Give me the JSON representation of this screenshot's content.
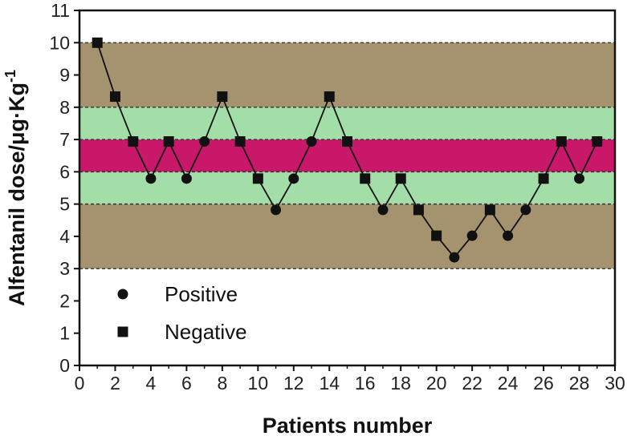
{
  "chart_data": {
    "type": "scatter",
    "xlabel": "Patients number",
    "ylabel_main": "Alfentanil dose/μg·Kg",
    "ylabel_sup": "-1",
    "xlim": [
      0,
      30
    ],
    "ylim": [
      0,
      11
    ],
    "x_ticks": [
      0,
      2,
      4,
      6,
      8,
      10,
      12,
      14,
      16,
      18,
      20,
      22,
      24,
      26,
      28,
      30
    ],
    "y_ticks": [
      0,
      1,
      2,
      3,
      4,
      5,
      6,
      7,
      8,
      9,
      10,
      11
    ],
    "bands": [
      {
        "y0": 3,
        "y1": 5,
        "color": "#a4936e"
      },
      {
        "y0": 5,
        "y1": 6,
        "color": "#a3dea9"
      },
      {
        "y0": 6,
        "y1": 7,
        "color": "#c9176a"
      },
      {
        "y0": 7,
        "y1": 8,
        "color": "#a3dea9"
      },
      {
        "y0": 8,
        "y1": 10,
        "color": "#a4936e"
      }
    ],
    "dashed_lines": [
      3,
      5,
      6,
      7,
      8,
      10
    ],
    "points": [
      {
        "x": 1,
        "y": 10.0,
        "outcome": "Negative"
      },
      {
        "x": 2,
        "y": 8.33,
        "outcome": "Negative"
      },
      {
        "x": 3,
        "y": 6.94,
        "outcome": "Negative"
      },
      {
        "x": 4,
        "y": 5.79,
        "outcome": "Positive"
      },
      {
        "x": 5,
        "y": 6.94,
        "outcome": "Negative"
      },
      {
        "x": 6,
        "y": 5.79,
        "outcome": "Positive"
      },
      {
        "x": 7,
        "y": 6.94,
        "outcome": "Positive"
      },
      {
        "x": 8,
        "y": 8.33,
        "outcome": "Negative"
      },
      {
        "x": 9,
        "y": 6.94,
        "outcome": "Negative"
      },
      {
        "x": 10,
        "y": 5.79,
        "outcome": "Negative"
      },
      {
        "x": 11,
        "y": 4.82,
        "outcome": "Positive"
      },
      {
        "x": 12,
        "y": 5.79,
        "outcome": "Positive"
      },
      {
        "x": 13,
        "y": 6.94,
        "outcome": "Positive"
      },
      {
        "x": 14,
        "y": 8.33,
        "outcome": "Negative"
      },
      {
        "x": 15,
        "y": 6.94,
        "outcome": "Negative"
      },
      {
        "x": 16,
        "y": 5.79,
        "outcome": "Negative"
      },
      {
        "x": 17,
        "y": 4.82,
        "outcome": "Positive"
      },
      {
        "x": 18,
        "y": 5.79,
        "outcome": "Negative"
      },
      {
        "x": 19,
        "y": 4.82,
        "outcome": "Negative"
      },
      {
        "x": 20,
        "y": 4.02,
        "outcome": "Negative"
      },
      {
        "x": 21,
        "y": 3.35,
        "outcome": "Positive"
      },
      {
        "x": 22,
        "y": 4.02,
        "outcome": "Positive"
      },
      {
        "x": 23,
        "y": 4.82,
        "outcome": "Negative"
      },
      {
        "x": 24,
        "y": 4.02,
        "outcome": "Positive"
      },
      {
        "x": 25,
        "y": 4.82,
        "outcome": "Positive"
      },
      {
        "x": 26,
        "y": 5.79,
        "outcome": "Negative"
      },
      {
        "x": 27,
        "y": 6.94,
        "outcome": "Negative"
      },
      {
        "x": 28,
        "y": 5.79,
        "outcome": "Positive"
      },
      {
        "x": 29,
        "y": 6.94,
        "outcome": "Negative"
      }
    ],
    "legend": {
      "placement": "bottom-left",
      "entries": [
        {
          "label": "Positive",
          "marker": "circle"
        },
        {
          "label": "Negative",
          "marker": "square"
        }
      ]
    }
  }
}
